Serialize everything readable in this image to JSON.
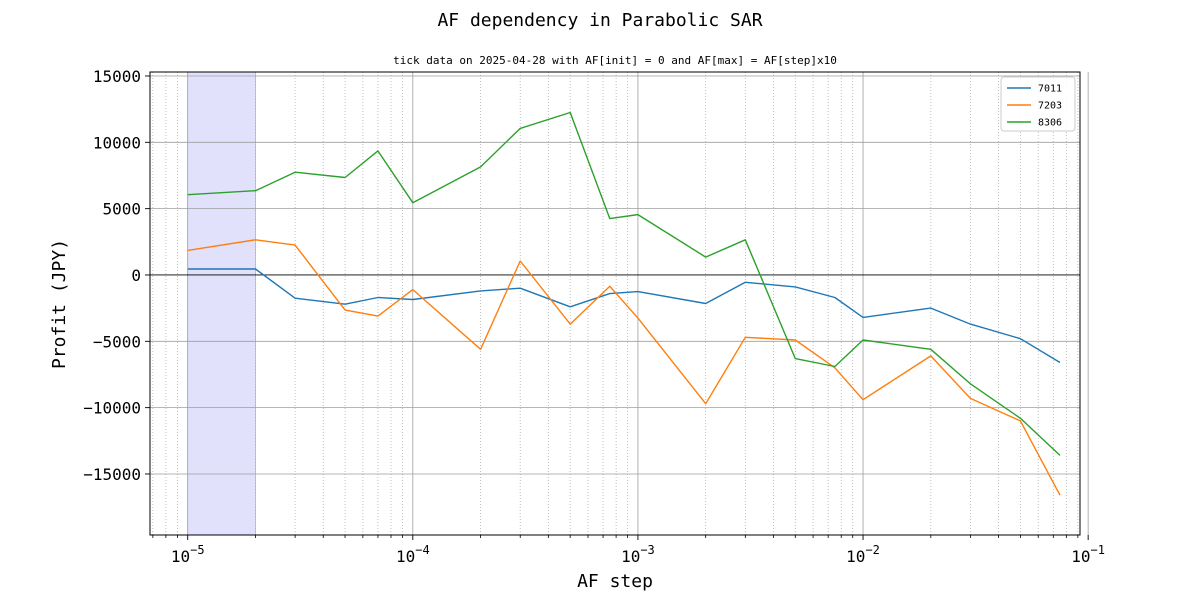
{
  "chart_data": {
    "type": "line",
    "title": "AF dependency in Parabolic SAR",
    "subtitle": "tick data on 2025-04-28 with AF[init] = 0 and AF[max] = AF[step]x10",
    "xlabel": "AF step",
    "ylabel": "Profit (JPY)",
    "xscale": "log",
    "xlim": [
      6.8e-06,
      0.092
    ],
    "ylim": [
      -19600,
      15300
    ],
    "grid": true,
    "legend_position": "top-right",
    "highlight_x_range": [
      1e-05,
      2e-05
    ],
    "y_ticks": [
      -15000,
      -10000,
      -5000,
      0,
      5000,
      10000,
      15000
    ],
    "y_tick_labels": [
      "−15000",
      "−10000",
      "−5000",
      "0",
      "5000",
      "10000",
      "15000"
    ],
    "x_ticks": [
      {
        "value": 1e-05,
        "base": "10",
        "exp": "−5"
      },
      {
        "value": 0.0001,
        "base": "10",
        "exp": "−4"
      },
      {
        "value": 0.001,
        "base": "10",
        "exp": "−3"
      },
      {
        "value": 0.01,
        "base": "10",
        "exp": "−2"
      },
      {
        "value": 0.1,
        "base": "10",
        "exp": "−1"
      }
    ],
    "x": [
      1e-05,
      2e-05,
      3e-05,
      5e-05,
      7e-05,
      0.0001,
      0.0002,
      0.0003,
      0.0005,
      0.00075,
      0.001,
      0.002,
      0.003,
      0.005,
      0.0075,
      0.01,
      0.02,
      0.03,
      0.05,
      0.075
    ],
    "series": [
      {
        "name": "7011",
        "color": "#1f77b4",
        "values": [
          450,
          450,
          -1750,
          -2200,
          -1700,
          -1850,
          -1200,
          -1000,
          -2400,
          -1400,
          -1250,
          -2150,
          -550,
          -900,
          -1700,
          -3200,
          -2500,
          -3700,
          -4800,
          -6600
        ]
      },
      {
        "name": "7203",
        "color": "#ff7f0e",
        "values": [
          1850,
          2650,
          2250,
          -2650,
          -3100,
          -1100,
          -5600,
          1050,
          -3700,
          -850,
          -3250,
          -9700,
          -4700,
          -4900,
          -7000,
          -9400,
          -6100,
          -9300,
          -11000,
          -16600
        ]
      },
      {
        "name": "8306",
        "color": "#2ca02c",
        "values": [
          6050,
          6350,
          7750,
          7350,
          9350,
          5450,
          8150,
          11050,
          12250,
          4250,
          4550,
          1350,
          2650,
          -6300,
          -6900,
          -4900,
          -5600,
          -8200,
          -10800,
          -13600
        ]
      }
    ]
  }
}
